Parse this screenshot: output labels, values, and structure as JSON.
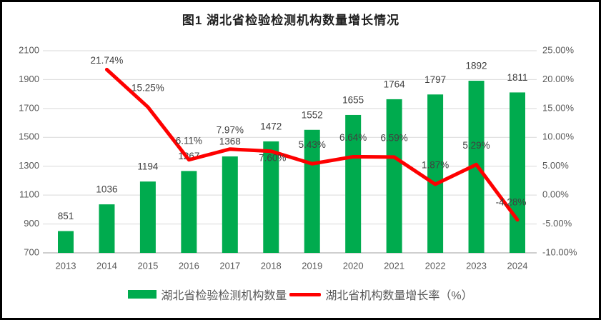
{
  "chart_data": {
    "type": "combo",
    "title": "图1 湖北省检验检测机构数量增长情况",
    "categories": [
      "2013",
      "2014",
      "2015",
      "2016",
      "2017",
      "2018",
      "2019",
      "2020",
      "2021",
      "2022",
      "2023",
      "2024"
    ],
    "series": [
      {
        "name": "湖北省检验检测机构数量",
        "type": "bar",
        "axis": "left",
        "color": "#00AB4E",
        "values": [
          851,
          1036,
          1194,
          1267,
          1368,
          1472,
          1552,
          1655,
          1764,
          1797,
          1892,
          1811
        ]
      },
      {
        "name": "湖北省机构数量增长率（%）",
        "type": "line",
        "axis": "right",
        "color": "#FE0000",
        "values": [
          null,
          21.74,
          15.25,
          6.11,
          7.97,
          7.6,
          5.43,
          6.64,
          6.59,
          1.87,
          5.29,
          -4.28
        ]
      }
    ],
    "left_axis": {
      "min": 700,
      "max": 2100,
      "step": 200,
      "ticks": [
        2100,
        1900,
        1700,
        1500,
        1300,
        1100,
        900,
        700
      ]
    },
    "right_axis": {
      "min": -10,
      "max": 25,
      "step": 5,
      "tick_format": "percent2",
      "ticks": [
        25,
        20,
        15,
        10,
        5,
        0,
        -5,
        -10
      ]
    },
    "grid": "horizontal",
    "data_labels": true,
    "legend_position": "bottom"
  },
  "legend": {
    "items": [
      {
        "label": "湖北省检验检测机构数量",
        "swatch": "bar",
        "color": "#00AB4E"
      },
      {
        "label": "湖北省机构数量增长率（%）",
        "swatch": "line",
        "color": "#FE0000"
      }
    ]
  },
  "colors": {
    "bar": "#00AB4E",
    "line": "#FE0000",
    "grid": "#D9D9D9",
    "axis_line": "#BFBFBF",
    "tick_text": "#595959",
    "label_text": "#404040",
    "title_text": "#1F1F1F",
    "border": "#000000",
    "background": "#FFFFFF"
  }
}
